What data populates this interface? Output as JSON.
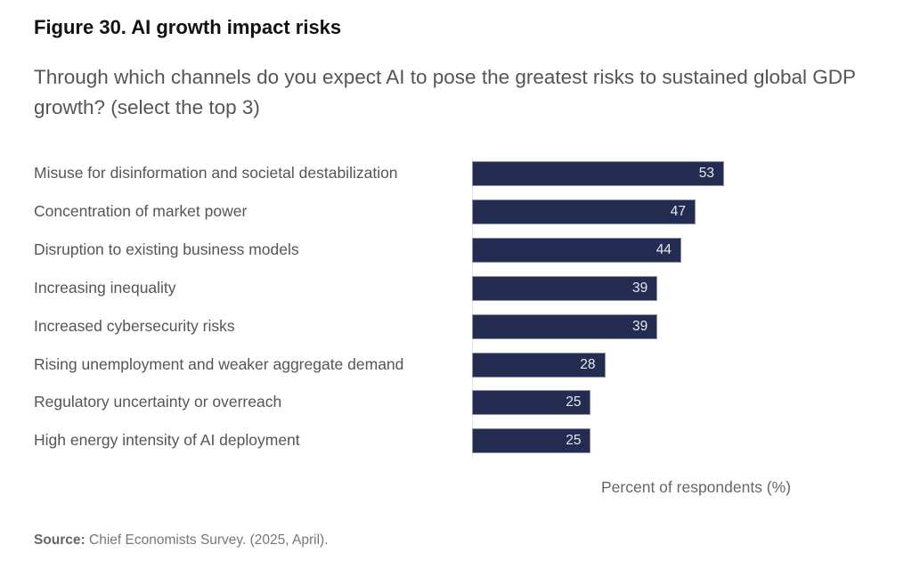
{
  "chart_data": {
    "type": "bar",
    "orientation": "horizontal",
    "title": "Figure 30. AI growth impact risks",
    "subtitle": "Through which channels do you expect AI to pose the greatest risks to sustained global GDP growth? (select the top 3)",
    "categories": [
      "Misuse for disinformation and societal destabilization",
      "Concentration of market power",
      "Disruption to existing business models",
      "Increasing inequality",
      "Increased cybersecurity risks",
      "Rising unemployment and weaker aggregate demand",
      "Regulatory uncertainty or overreach",
      "High energy intensity of AI deployment"
    ],
    "values": [
      53,
      47,
      44,
      39,
      39,
      28,
      25,
      25
    ],
    "xlabel": "Percent of respondents (%)",
    "ylabel": "",
    "xlim": [
      0,
      70
    ],
    "grid": false,
    "bar_color": "#242d51",
    "source_label": "Source:",
    "source_text": "Chief Economists Survey. (2025, April)."
  }
}
